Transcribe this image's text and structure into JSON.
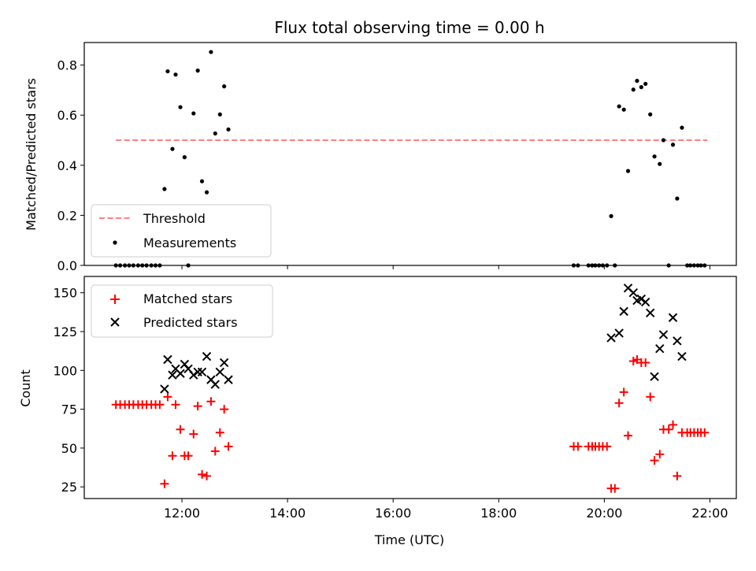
{
  "chart_data": [
    {
      "type": "scatter",
      "title": "Flux total observing time = 0.00 h",
      "xlabel": "",
      "ylabel": "Matched/Predicted stars",
      "xlim": [
        10.15,
        22.5
      ],
      "ylim": [
        0,
        0.89
      ],
      "yticks": [
        0.0,
        0.2,
        0.4,
        0.6,
        0.8
      ],
      "ytick_labels": [
        "0.0",
        "0.2",
        "0.4",
        "0.6",
        "0.8"
      ],
      "legend": {
        "placement": "lower-left",
        "entries": [
          "Threshold",
          "Measurements"
        ]
      },
      "threshold": {
        "name": "Threshold",
        "value": 0.5,
        "x_range": [
          10.75,
          21.95
        ],
        "color": "#ff7f7f"
      },
      "series": [
        {
          "name": "Measurements",
          "color": "#000000",
          "points": [
            [
              10.75,
              0
            ],
            [
              10.83,
              0
            ],
            [
              10.92,
              0
            ],
            [
              11.0,
              0
            ],
            [
              11.08,
              0
            ],
            [
              11.17,
              0
            ],
            [
              11.25,
              0
            ],
            [
              11.33,
              0
            ],
            [
              11.42,
              0
            ],
            [
              11.5,
              0
            ],
            [
              11.58,
              0
            ],
            [
              11.67,
              0.305
            ],
            [
              11.73,
              0.775
            ],
            [
              11.82,
              0.465
            ],
            [
              11.88,
              0.762
            ],
            [
              11.97,
              0.632
            ],
            [
              12.05,
              0.432
            ],
            [
              12.12,
              0.0
            ],
            [
              12.22,
              0.607
            ],
            [
              12.3,
              0.778
            ],
            [
              12.38,
              0.336
            ],
            [
              12.47,
              0.292
            ],
            [
              12.55,
              0.852
            ],
            [
              12.63,
              0.527
            ],
            [
              12.72,
              0.603
            ],
            [
              12.8,
              0.715
            ],
            [
              12.88,
              0.543
            ],
            [
              19.42,
              0
            ],
            [
              19.5,
              0
            ],
            [
              19.7,
              0
            ],
            [
              19.77,
              0
            ],
            [
              19.83,
              0
            ],
            [
              19.9,
              0
            ],
            [
              19.97,
              0
            ],
            [
              20.05,
              0
            ],
            [
              20.2,
              0
            ],
            [
              20.13,
              0.197
            ],
            [
              20.28,
              0.635
            ],
            [
              20.37,
              0.622
            ],
            [
              20.45,
              0.377
            ],
            [
              20.55,
              0.702
            ],
            [
              20.62,
              0.737
            ],
            [
              20.7,
              0.712
            ],
            [
              20.78,
              0.725
            ],
            [
              20.87,
              0.603
            ],
            [
              20.95,
              0.435
            ],
            [
              21.05,
              0.405
            ],
            [
              21.12,
              0.5
            ],
            [
              21.22,
              0.0
            ],
            [
              21.3,
              0.482
            ],
            [
              21.38,
              0.267
            ],
            [
              21.47,
              0.55
            ],
            [
              21.57,
              0
            ],
            [
              21.63,
              0
            ],
            [
              21.7,
              0
            ],
            [
              21.77,
              0
            ],
            [
              21.83,
              0
            ],
            [
              21.9,
              0
            ]
          ]
        }
      ]
    },
    {
      "type": "scatter",
      "title": "",
      "xlabel": "Time (UTC)",
      "ylabel": "Count",
      "xlim": [
        10.15,
        22.5
      ],
      "ylim": [
        17.5,
        160.5
      ],
      "yticks": [
        25,
        50,
        75,
        100,
        125,
        150
      ],
      "ytick_labels": [
        "25",
        "50",
        "75",
        "100",
        "125",
        "150"
      ],
      "xticks": [
        12,
        14,
        16,
        18,
        20,
        22
      ],
      "xtick_labels": [
        "12:00",
        "14:00",
        "16:00",
        "18:00",
        "20:00",
        "22:00"
      ],
      "legend": {
        "placement": "upper-left",
        "entries": [
          "Matched stars",
          "Predicted stars"
        ]
      },
      "series": [
        {
          "name": "Matched stars",
          "marker": "plus",
          "color": "#ff0000",
          "points": [
            [
              10.75,
              78
            ],
            [
              10.83,
              78
            ],
            [
              10.92,
              78
            ],
            [
              11.0,
              78
            ],
            [
              11.08,
              78
            ],
            [
              11.17,
              78
            ],
            [
              11.25,
              78
            ],
            [
              11.33,
              78
            ],
            [
              11.42,
              78
            ],
            [
              11.5,
              78
            ],
            [
              11.58,
              78
            ],
            [
              11.67,
              27
            ],
            [
              11.73,
              83
            ],
            [
              11.82,
              45
            ],
            [
              11.88,
              78
            ],
            [
              11.97,
              62
            ],
            [
              12.05,
              45
            ],
            [
              12.12,
              45
            ],
            [
              12.22,
              59
            ],
            [
              12.3,
              77
            ],
            [
              12.38,
              33
            ],
            [
              12.47,
              32
            ],
            [
              12.55,
              80
            ],
            [
              12.63,
              48
            ],
            [
              12.72,
              60
            ],
            [
              12.8,
              75
            ],
            [
              12.88,
              51
            ],
            [
              19.42,
              51
            ],
            [
              19.5,
              51
            ],
            [
              19.7,
              51
            ],
            [
              19.77,
              51
            ],
            [
              19.83,
              51
            ],
            [
              19.9,
              51
            ],
            [
              19.97,
              51
            ],
            [
              20.05,
              51
            ],
            [
              20.13,
              24
            ],
            [
              20.2,
              24
            ],
            [
              20.28,
              79
            ],
            [
              20.37,
              86
            ],
            [
              20.45,
              58
            ],
            [
              20.55,
              106
            ],
            [
              20.62,
              107
            ],
            [
              20.7,
              105
            ],
            [
              20.78,
              105
            ],
            [
              20.87,
              83
            ],
            [
              20.95,
              42
            ],
            [
              21.05,
              46
            ],
            [
              21.12,
              62
            ],
            [
              21.22,
              62
            ],
            [
              21.3,
              65
            ],
            [
              21.38,
              32
            ],
            [
              21.47,
              60
            ],
            [
              21.57,
              60
            ],
            [
              21.63,
              60
            ],
            [
              21.7,
              60
            ],
            [
              21.77,
              60
            ],
            [
              21.83,
              60
            ],
            [
              21.9,
              60
            ]
          ]
        },
        {
          "name": "Predicted stars",
          "marker": "x",
          "color": "#000000",
          "points": [
            [
              11.67,
              88
            ],
            [
              11.73,
              107
            ],
            [
              11.82,
              97
            ],
            [
              11.88,
              101
            ],
            [
              11.97,
              98
            ],
            [
              12.05,
              104
            ],
            [
              12.12,
              101
            ],
            [
              12.22,
              97
            ],
            [
              12.3,
              99
            ],
            [
              12.38,
              99
            ],
            [
              12.47,
              109
            ],
            [
              12.55,
              94
            ],
            [
              12.63,
              91
            ],
            [
              12.72,
              99
            ],
            [
              12.8,
              105
            ],
            [
              12.88,
              94
            ],
            [
              20.13,
              121
            ],
            [
              20.28,
              124
            ],
            [
              20.37,
              138
            ],
            [
              20.45,
              153
            ],
            [
              20.55,
              150
            ],
            [
              20.62,
              145
            ],
            [
              20.7,
              146
            ],
            [
              20.78,
              144
            ],
            [
              20.87,
              137
            ],
            [
              20.95,
              96
            ],
            [
              21.05,
              114
            ],
            [
              21.12,
              123
            ],
            [
              21.3,
              134
            ],
            [
              21.38,
              119
            ],
            [
              21.47,
              109
            ]
          ]
        }
      ]
    }
  ]
}
